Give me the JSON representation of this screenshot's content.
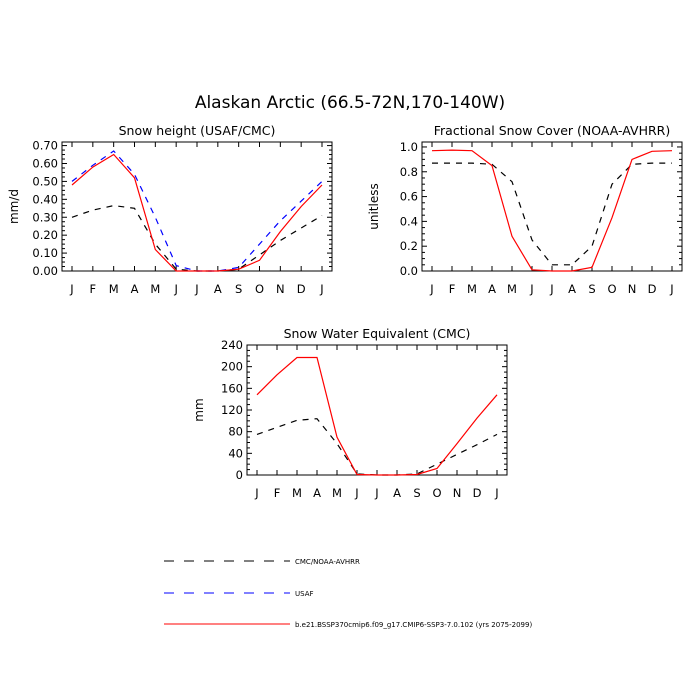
{
  "figure_title": "Alaskan Arctic (66.5-72N,170-140W)",
  "months": [
    "J",
    "F",
    "M",
    "A",
    "M",
    "J",
    "J",
    "A",
    "S",
    "O",
    "N",
    "D",
    "J"
  ],
  "colors": {
    "obs": "#000000",
    "usaf": "#0000ff",
    "model": "#ff0000"
  },
  "legend": [
    {
      "label": "CMC/NOAA-AVHRR",
      "color": "#000000",
      "dash": "dashed"
    },
    {
      "label": "USAF",
      "color": "#0000ff",
      "dash": "dashed"
    },
    {
      "label": "b.e21.BSSP370cmip6.f09_g17.CMIP6-SSP3-7.0.102 (yrs 2075-2099)",
      "color": "#ff0000",
      "dash": "solid"
    }
  ],
  "chart_data": [
    {
      "type": "line",
      "title": "Snow height (USAF/CMC)",
      "xlabel": "",
      "ylabel": "mm/d",
      "categories": [
        "J",
        "F",
        "M",
        "A",
        "M",
        "J",
        "J",
        "A",
        "S",
        "O",
        "N",
        "D",
        "J"
      ],
      "ylim": [
        0,
        0.72
      ],
      "yticks": [
        0,
        0.1,
        0.2,
        0.3,
        0.4,
        0.5,
        0.6,
        0.7
      ],
      "ytick_labels": [
        "0.00",
        "0.10",
        "0.20",
        "0.30",
        "0.40",
        "0.50",
        "0.60",
        "0.70"
      ],
      "series": [
        {
          "style": "obs",
          "values": [
            0.3,
            0.34,
            0.365,
            0.35,
            0.15,
            0.01,
            0.0,
            0.0,
            0.01,
            0.09,
            0.17,
            0.24,
            0.31
          ]
        },
        {
          "style": "usaf",
          "values": [
            0.5,
            0.59,
            0.67,
            0.54,
            0.3,
            0.03,
            0.0,
            0.0,
            0.02,
            0.15,
            0.28,
            0.39,
            0.5
          ]
        },
        {
          "style": "model",
          "values": [
            0.48,
            0.58,
            0.65,
            0.52,
            0.12,
            0.0,
            0.0,
            0.0,
            0.01,
            0.06,
            0.22,
            0.36,
            0.48
          ]
        }
      ]
    },
    {
      "type": "line",
      "title": "Fractional Snow Cover (NOAA-AVHRR)",
      "xlabel": "",
      "ylabel": "unitless",
      "categories": [
        "J",
        "F",
        "M",
        "A",
        "M",
        "J",
        "J",
        "A",
        "S",
        "O",
        "N",
        "D",
        "J"
      ],
      "ylim": [
        0,
        1.04
      ],
      "yticks": [
        0,
        0.2,
        0.4,
        0.6,
        0.8,
        1.0
      ],
      "ytick_labels": [
        "0.0",
        "0.2",
        "0.4",
        "0.6",
        "0.8",
        "1.0"
      ],
      "series": [
        {
          "style": "obs",
          "values": [
            0.87,
            0.87,
            0.87,
            0.86,
            0.72,
            0.25,
            0.05,
            0.05,
            0.2,
            0.7,
            0.86,
            0.87,
            0.87
          ]
        },
        {
          "style": "model",
          "values": [
            0.97,
            0.975,
            0.97,
            0.85,
            0.28,
            0.01,
            0.0,
            0.0,
            0.03,
            0.43,
            0.9,
            0.965,
            0.97
          ]
        }
      ]
    },
    {
      "type": "line",
      "title": "Snow Water Equivalent (CMC)",
      "xlabel": "",
      "ylabel": "mm",
      "categories": [
        "J",
        "F",
        "M",
        "A",
        "M",
        "J",
        "J",
        "A",
        "S",
        "O",
        "N",
        "D",
        "J"
      ],
      "ylim": [
        0,
        240
      ],
      "yticks": [
        0,
        40,
        80,
        120,
        160,
        200,
        240
      ],
      "ytick_labels": [
        "0",
        "40",
        "80",
        "120",
        "160",
        "200",
        "240"
      ],
      "series": [
        {
          "style": "obs",
          "values": [
            75,
            88,
            101,
            104,
            58,
            2,
            0,
            0,
            2,
            20,
            38,
            56,
            75
          ]
        },
        {
          "style": "model",
          "values": [
            148,
            185,
            217,
            217,
            70,
            1,
            0,
            0,
            1,
            12,
            58,
            105,
            148
          ]
        }
      ]
    }
  ]
}
